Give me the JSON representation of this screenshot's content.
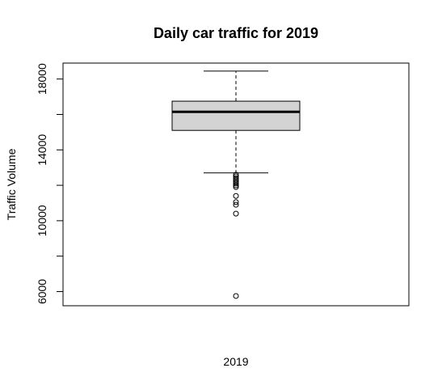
{
  "chart_data": {
    "type": "boxplot",
    "title": "Daily car traffic for 2019",
    "xlabel": "2019",
    "ylabel": "Traffic Volume",
    "ylim": [
      5200,
      18900
    ],
    "yticks": [
      6000,
      8000,
      10000,
      12000,
      14000,
      16000,
      18000
    ],
    "ytick_labels": [
      "6000",
      "",
      "10000",
      "",
      "14000",
      "",
      "18000"
    ],
    "grid": false,
    "box": {
      "min_whisker": 12700,
      "q1": 15100,
      "median": 16150,
      "q3": 16750,
      "max_whisker": 18450
    },
    "outliers": [
      12600,
      12500,
      12400,
      12300,
      12200,
      12100,
      12000,
      11900,
      11400,
      11050,
      10900,
      10400,
      5750
    ],
    "colors": {
      "box_fill": "#d3d3d3",
      "line": "#000000",
      "background": "#ffffff"
    }
  }
}
